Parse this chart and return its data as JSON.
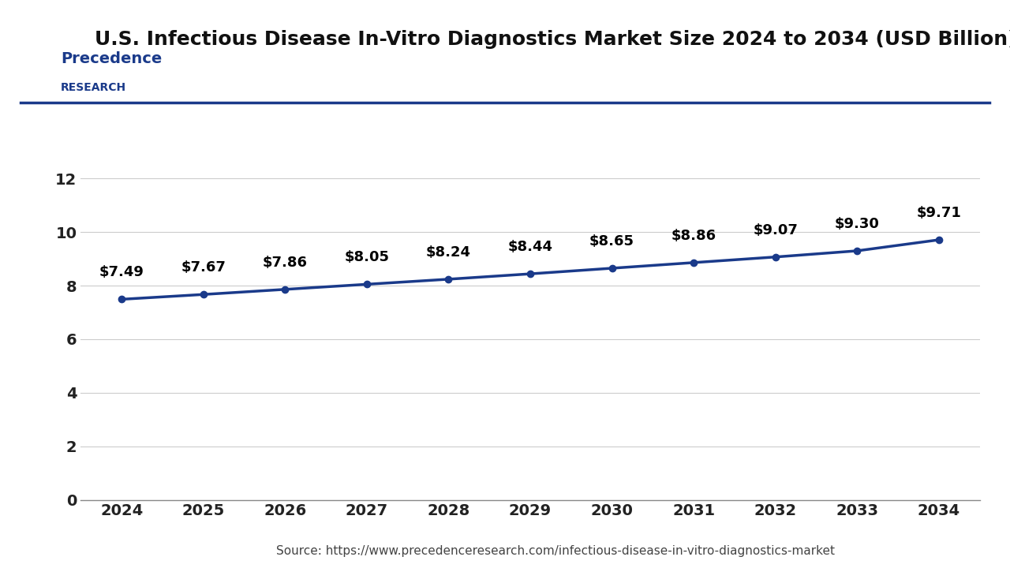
{
  "title": "U.S. Infectious Disease In-Vitro Diagnostics Market Size 2024 to 2034 (USD Billion)",
  "years": [
    2024,
    2025,
    2026,
    2027,
    2028,
    2029,
    2030,
    2031,
    2032,
    2033,
    2034
  ],
  "values": [
    7.49,
    7.67,
    7.86,
    8.05,
    8.24,
    8.44,
    8.65,
    8.86,
    9.07,
    9.3,
    9.71
  ],
  "labels": [
    "$7.49",
    "$7.67",
    "$7.86",
    "$8.05",
    "$8.24",
    "$8.44",
    "$8.65",
    "$8.86",
    "$9.07",
    "$9.30",
    "$9.71"
  ],
  "line_color": "#1a3a8a",
  "marker_color": "#1a3a8a",
  "background_color": "#ffffff",
  "grid_color": "#cccccc",
  "ylim": [
    0,
    14
  ],
  "yticks": [
    0,
    2,
    4,
    6,
    8,
    10,
    12
  ],
  "source_text": "Source: https://www.precedenceresearch.com/infectious-disease-in-vitro-diagnostics-market",
  "title_fontsize": 18,
  "tick_fontsize": 14,
  "label_fontsize": 13,
  "source_fontsize": 11,
  "line_width": 2.5,
  "marker_size": 6,
  "logo_text1": "Precedence",
  "logo_text2": "RESEARCH",
  "logo_color": "#1a3a8a",
  "separator_color": "#1a3a8a"
}
